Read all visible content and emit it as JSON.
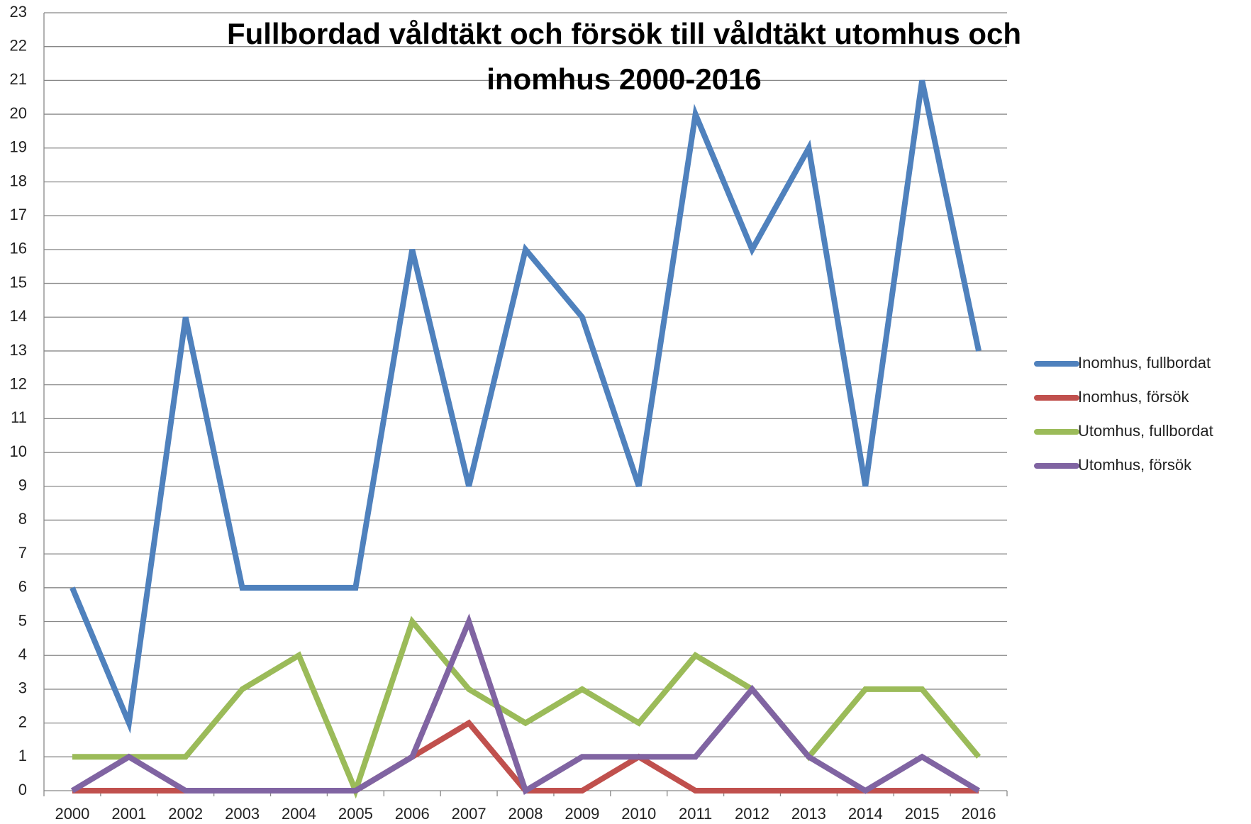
{
  "chart_data": {
    "type": "line",
    "title": "Fullbordad våldtäkt och försök till våldtäkt utomhus och inomhus 2000-2016",
    "categories": [
      "2000",
      "2001",
      "2002",
      "2003",
      "2004",
      "2005",
      "2006",
      "2007",
      "2008",
      "2009",
      "2010",
      "2011",
      "2012",
      "2013",
      "2014",
      "2015",
      "2016"
    ],
    "series": [
      {
        "name": "Inomhus, fullbordat",
        "color": "#4f81bd",
        "values": [
          6,
          2,
          14,
          6,
          6,
          6,
          16,
          9,
          16,
          14,
          9,
          20,
          16,
          19,
          9,
          21,
          13
        ]
      },
      {
        "name": "Inomhus, försök",
        "color": "#c0504d",
        "values": [
          0,
          0,
          0,
          0,
          0,
          0,
          1,
          2,
          0,
          0,
          1,
          0,
          0,
          0,
          0,
          0,
          0
        ]
      },
      {
        "name": "Utomhus, fullbordat",
        "color": "#9bbb59",
        "values": [
          1,
          1,
          1,
          3,
          4,
          0,
          5,
          3,
          2,
          3,
          2,
          4,
          3,
          1,
          3,
          3,
          1
        ]
      },
      {
        "name": "Utomhus, försök",
        "color": "#8064a2",
        "values": [
          0,
          1,
          0,
          0,
          0,
          0,
          1,
          5,
          0,
          1,
          1,
          1,
          3,
          1,
          0,
          1,
          0
        ]
      }
    ],
    "ylim": [
      0,
      23
    ],
    "yticks": [
      0,
      1,
      2,
      3,
      4,
      5,
      6,
      7,
      8,
      9,
      10,
      11,
      12,
      13,
      14,
      15,
      16,
      17,
      18,
      19,
      20,
      21,
      22,
      23
    ],
    "grid": true,
    "legend": "right"
  }
}
